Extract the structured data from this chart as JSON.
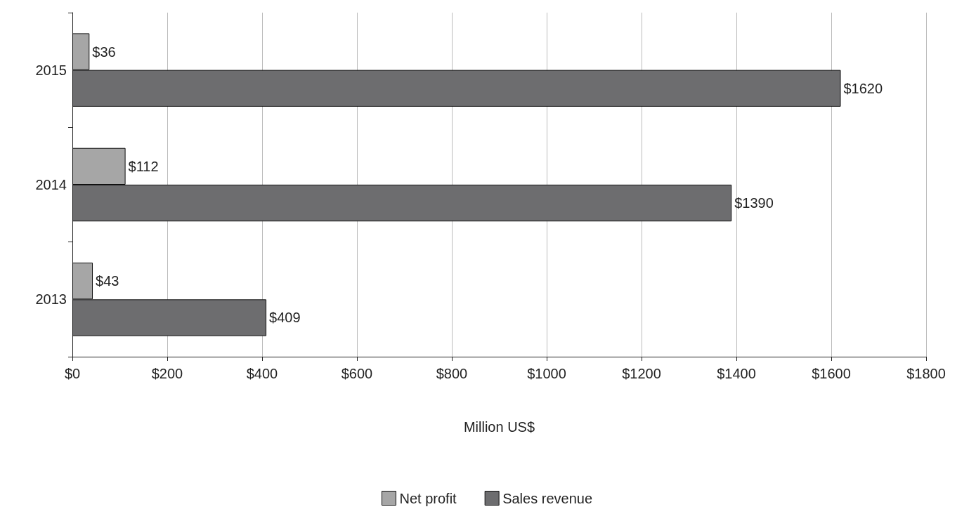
{
  "chart_data": {
    "type": "bar",
    "orientation": "horizontal",
    "xlabel": "Million US$",
    "categories": [
      "2015",
      "2014",
      "2013"
    ],
    "series": [
      {
        "name": "Net profit",
        "color": "#a6a6a6",
        "values": [
          36,
          112,
          43
        ],
        "value_labels": [
          "$36",
          "$112",
          "$43"
        ]
      },
      {
        "name": "Sales revenue",
        "color": "#6d6d6f",
        "values": [
          1620,
          1390,
          409
        ],
        "value_labels": [
          "$1620",
          "$1390",
          "$409"
        ]
      }
    ],
    "xlim": [
      0,
      1800
    ],
    "xticks": [
      {
        "value": 0,
        "label": "$0"
      },
      {
        "value": 200,
        "label": "$200"
      },
      {
        "value": 400,
        "label": "$400"
      },
      {
        "value": 600,
        "label": "$600"
      },
      {
        "value": 800,
        "label": "$800"
      },
      {
        "value": 1000,
        "label": "$1000"
      },
      {
        "value": 1200,
        "label": "$1200"
      },
      {
        "value": 1400,
        "label": "$1400"
      },
      {
        "value": 1600,
        "label": "$1600"
      },
      {
        "value": 1800,
        "label": "$1800"
      }
    ],
    "grid": "x",
    "legend": "bottom"
  }
}
